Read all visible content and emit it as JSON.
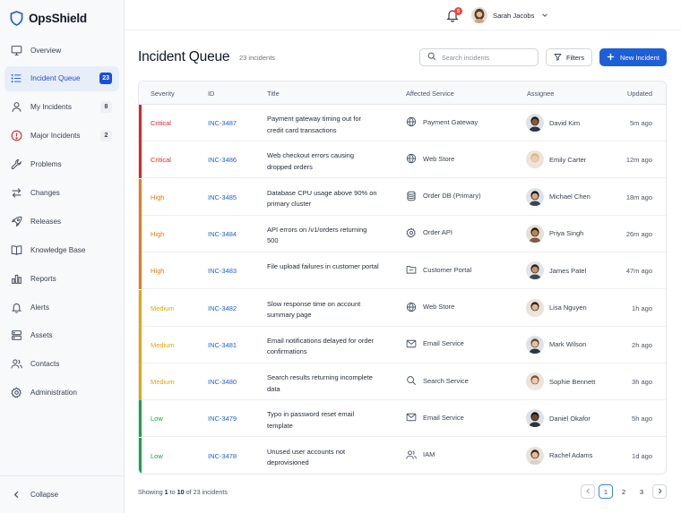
{
  "app": {
    "name": "OpsShield"
  },
  "sidebar": {
    "items": [
      {
        "label": "Overview",
        "icon": "monitor-icon"
      },
      {
        "label": "Incident Queue",
        "icon": "list-icon",
        "badge": "23",
        "active": true
      },
      {
        "label": "My Incidents",
        "icon": "user-icon",
        "badge": "8"
      },
      {
        "label": "Major Incidents",
        "icon": "alert-circle-icon",
        "badge": "2"
      },
      {
        "label": "Problems",
        "icon": "wrench-icon"
      },
      {
        "label": "Changes",
        "icon": "swap-icon"
      },
      {
        "label": "Releases",
        "icon": "rocket-icon"
      },
      {
        "label": "Knowledge Base",
        "icon": "book-icon"
      },
      {
        "label": "Reports",
        "icon": "bar-chart-icon"
      },
      {
        "label": "Alerts",
        "icon": "bell-icon"
      },
      {
        "label": "Assets",
        "icon": "server-icon"
      },
      {
        "label": "Contacts",
        "icon": "users-icon"
      },
      {
        "label": "Administration",
        "icon": "gear-icon"
      }
    ],
    "collapse_label": "Collapse"
  },
  "topbar": {
    "notification_count": "5",
    "user_name": "Sarah Jacobs"
  },
  "header": {
    "title": "Incident Queue",
    "count_text": "23 incidents",
    "search_placeholder": "Search incidents",
    "filters_label": "Filters",
    "new_button_label": "New Incident"
  },
  "table": {
    "columns": [
      "Severity",
      "ID",
      "Title",
      "Affected Service",
      "Assignee",
      "Updated"
    ],
    "rows": [
      {
        "severity": "Critical",
        "id": "INC-3487",
        "title": "Payment gateway timing out for credit card transactions",
        "service": "Payment Gateway",
        "service_icon": "globe-icon",
        "assignee": "David Kim",
        "updated": "5m ago"
      },
      {
        "severity": "Critical",
        "id": "INC-3486",
        "title": "Web checkout errors causing dropped orders",
        "service": "Web Store",
        "service_icon": "globe-icon",
        "assignee": "Emily Carter",
        "updated": "12m ago"
      },
      {
        "severity": "High",
        "id": "INC-3485",
        "title": "Database CPU usage above 90% on primary cluster",
        "service": "Order DB (Primary)",
        "service_icon": "database-icon",
        "assignee": "Michael Chen",
        "updated": "18m ago"
      },
      {
        "severity": "High",
        "id": "INC-3484",
        "title": "API errors on /v1/orders returning 500",
        "service": "Order API",
        "service_icon": "gear-icon",
        "assignee": "Priya Singh",
        "updated": "26m ago"
      },
      {
        "severity": "High",
        "id": "INC-3483",
        "title": "File upload failures in customer portal",
        "service": "Customer Portal",
        "service_icon": "folder-icon",
        "assignee": "James Patel",
        "updated": "47m ago"
      },
      {
        "severity": "Medium",
        "id": "INC-3482",
        "title": "Slow response time on account summary page",
        "service": "Web Store",
        "service_icon": "globe-icon",
        "assignee": "Lisa Nguyen",
        "updated": "1h ago"
      },
      {
        "severity": "Medium",
        "id": "INC-3481",
        "title": "Email notifications delayed for order confirmations",
        "service": "Email Service",
        "service_icon": "mail-icon",
        "assignee": "Mark Wilson",
        "updated": "2h ago"
      },
      {
        "severity": "Medium",
        "id": "INC-3480",
        "title": "Search results returning incomplete data",
        "service": "Search Service",
        "service_icon": "search-icon",
        "assignee": "Sophie Bennett",
        "updated": "3h ago"
      },
      {
        "severity": "Low",
        "id": "INC-3479",
        "title": "Typo in password reset email template",
        "service": "Email Service",
        "service_icon": "mail-icon",
        "assignee": "Daniel Okafor",
        "updated": "5h ago"
      },
      {
        "severity": "Low",
        "id": "INC-3478",
        "title": "Unused user accounts not deprovisioned",
        "service": "IAM",
        "service_icon": "users-icon",
        "assignee": "Rachel Adams",
        "updated": "1d ago"
      }
    ]
  },
  "footer": {
    "prefix": "Showing",
    "from": "1",
    "to_word": "to",
    "to": "10",
    "of_text": "of 23 incidents",
    "pages": [
      "1",
      "2",
      "3"
    ],
    "current_page": "1"
  },
  "colors": {
    "accent": "#1d5fd6",
    "critical": "#dc2626",
    "high": "#ea7a1a",
    "medium": "#e5a50a",
    "low": "#16a34a"
  }
}
